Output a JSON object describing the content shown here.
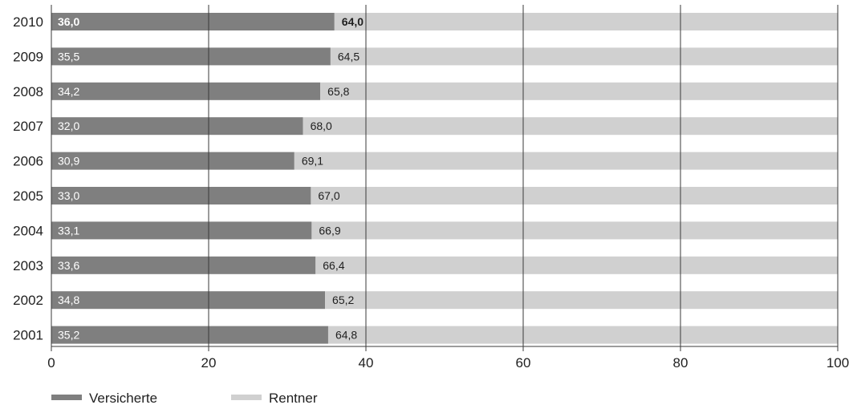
{
  "chart_data": {
    "type": "bar",
    "orientation": "horizontal",
    "stacked": true,
    "categories": [
      "2010",
      "2009",
      "2008",
      "2007",
      "2006",
      "2005",
      "2004",
      "2003",
      "2002",
      "2001"
    ],
    "series": [
      {
        "name": "Versicherte",
        "color": "#7f7f7f",
        "values": [
          36.0,
          35.5,
          34.2,
          32.0,
          30.9,
          33.0,
          33.1,
          33.6,
          34.8,
          35.2
        ],
        "labels": [
          "36,0",
          "35,5",
          "34,2",
          "32,0",
          "30,9",
          "33,0",
          "33,1",
          "33,6",
          "34,8",
          "35,2"
        ]
      },
      {
        "name": "Rentner",
        "color": "#d0d0d0",
        "values": [
          64.0,
          64.5,
          65.8,
          68.0,
          69.1,
          67.0,
          66.9,
          66.4,
          65.2,
          64.8
        ],
        "labels": [
          "64,0",
          "64,5",
          "65,8",
          "68,0",
          "69,1",
          "67,0",
          "66,9",
          "66,4",
          "65,2",
          "64,8"
        ]
      }
    ],
    "xlim": [
      0,
      100
    ],
    "xticks": [
      0,
      20,
      40,
      60,
      80,
      100
    ],
    "xtick_labels": [
      "0",
      "20",
      "40",
      "60",
      "80",
      "100"
    ],
    "grid": "vertical",
    "legend_position": "bottom-left"
  }
}
